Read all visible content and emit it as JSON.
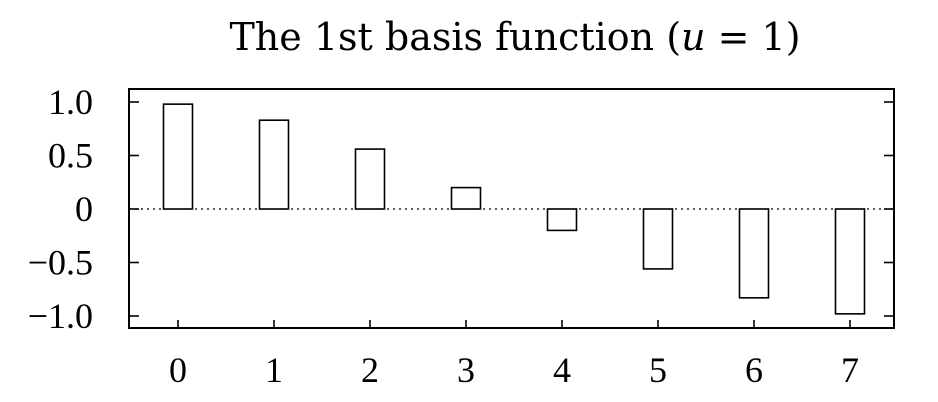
{
  "chart_data": {
    "type": "bar",
    "title": "The 1st basis function (",
    "title_var": "u",
    "title_tail": " = 1)",
    "categories": [
      "0",
      "1",
      "2",
      "3",
      "4",
      "5",
      "6",
      "7"
    ],
    "values": [
      0.98,
      0.83,
      0.56,
      0.2,
      -0.2,
      -0.56,
      -0.83,
      -0.98
    ],
    "ylim": [
      -1.0,
      1.0
    ],
    "yticks": [
      {
        "value": 1.0,
        "label": "1.0"
      },
      {
        "value": 0.5,
        "label": "0.5"
      },
      {
        "value": 0,
        "label": "0"
      },
      {
        "value": -0.5,
        "label": "−0.5"
      },
      {
        "value": -1.0,
        "label": "−1.0"
      }
    ],
    "zero_line": "dotted",
    "grid": false,
    "bar_fill": "#ffffff",
    "bar_stroke": "#000000"
  }
}
